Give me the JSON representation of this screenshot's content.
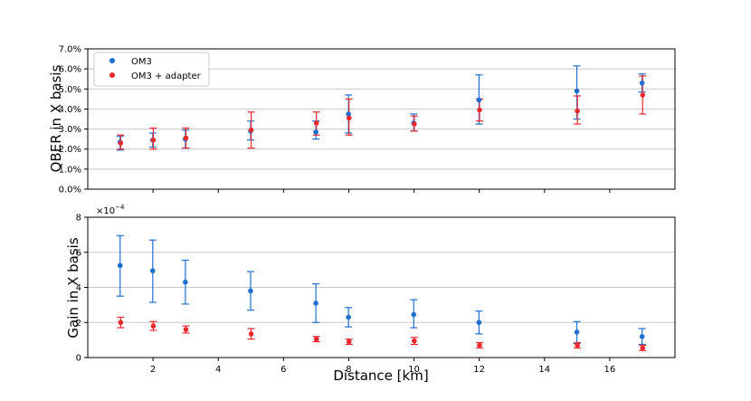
{
  "chart_data": [
    {
      "type": "scatter",
      "panel": "top",
      "ylabel": "QBER in X basis",
      "xlabel": "",
      "xlim": [
        0,
        18
      ],
      "ylim": [
        0,
        7
      ],
      "y_tick_labels": [
        "0.0%",
        "1.0%",
        "2.0%",
        "3.0%",
        "4.0%",
        "5.0%",
        "6.0%",
        "7.0%"
      ],
      "y_ticks": [
        0,
        1,
        2,
        3,
        4,
        5,
        6,
        7
      ],
      "x_ticks": [
        2,
        4,
        6,
        8,
        10,
        12,
        14,
        16
      ],
      "grid": "horizontal",
      "legend_placement": "top-left",
      "series": [
        {
          "name": "OM3",
          "color": "#1f6fd0",
          "x": [
            1,
            2,
            3,
            5,
            7,
            8,
            10,
            12,
            15,
            17
          ],
          "y": [
            2.35,
            2.45,
            2.5,
            2.9,
            2.85,
            3.75,
            3.3,
            4.45,
            4.9,
            5.3
          ],
          "err_low": [
            0.4,
            0.35,
            0.45,
            0.45,
            0.35,
            0.95,
            0.4,
            1.2,
            1.4,
            0.45
          ],
          "err_high": [
            0.3,
            0.35,
            0.45,
            0.5,
            0.55,
            0.95,
            0.45,
            1.25,
            1.25,
            0.45
          ]
        },
        {
          "name": "OM3 + adapter",
          "color": "#e8282d",
          "x": [
            1,
            2,
            3,
            5,
            7,
            8,
            10,
            12,
            15,
            17
          ],
          "y": [
            2.3,
            2.45,
            2.55,
            2.95,
            3.3,
            3.55,
            3.25,
            3.95,
            3.9,
            4.7
          ],
          "err_low": [
            0.3,
            0.45,
            0.5,
            0.9,
            0.6,
            0.85,
            0.35,
            0.55,
            0.65,
            0.95
          ],
          "err_high": [
            0.4,
            0.6,
            0.5,
            0.9,
            0.55,
            0.95,
            0.4,
            0.55,
            0.75,
            0.95
          ]
        }
      ]
    },
    {
      "type": "scatter",
      "panel": "bottom",
      "ylabel": "Gain in X basis",
      "xlabel": "Distance [km]",
      "scale_label_base": "×10",
      "scale_label_exp": "−4",
      "xlim": [
        0,
        18
      ],
      "ylim": [
        0,
        8
      ],
      "y_tick_labels": [
        "0",
        "2",
        "4",
        "6",
        "8"
      ],
      "y_ticks": [
        0,
        2,
        4,
        6,
        8
      ],
      "x_tick_labels": [
        "2",
        "4",
        "6",
        "8",
        "10",
        "12",
        "14",
        "16"
      ],
      "x_ticks": [
        2,
        4,
        6,
        8,
        10,
        12,
        14,
        16
      ],
      "grid": "horizontal",
      "series": [
        {
          "name": "OM3",
          "color": "#1f6fd0",
          "x": [
            1,
            2,
            3,
            5,
            7,
            8,
            10,
            12,
            15,
            17
          ],
          "y": [
            5.25,
            4.95,
            4.3,
            3.8,
            3.1,
            2.3,
            2.45,
            2.0,
            1.45,
            1.2
          ],
          "err_low": [
            1.75,
            1.8,
            1.25,
            1.1,
            1.1,
            0.55,
            0.75,
            0.65,
            0.65,
            0.45
          ],
          "err_high": [
            1.7,
            1.75,
            1.25,
            1.1,
            1.1,
            0.55,
            0.85,
            0.65,
            0.6,
            0.45
          ]
        },
        {
          "name": "OM3 + adapter",
          "color": "#e8282d",
          "x": [
            1,
            2,
            3,
            5,
            7,
            8,
            10,
            12,
            15,
            17
          ],
          "y": [
            2.0,
            1.8,
            1.6,
            1.35,
            1.05,
            0.9,
            0.95,
            0.7,
            0.7,
            0.55
          ],
          "err_low": [
            0.3,
            0.25,
            0.2,
            0.3,
            0.15,
            0.15,
            0.2,
            0.15,
            0.15,
            0.15
          ],
          "err_high": [
            0.3,
            0.25,
            0.2,
            0.3,
            0.15,
            0.15,
            0.2,
            0.15,
            0.15,
            0.15
          ]
        }
      ]
    }
  ]
}
